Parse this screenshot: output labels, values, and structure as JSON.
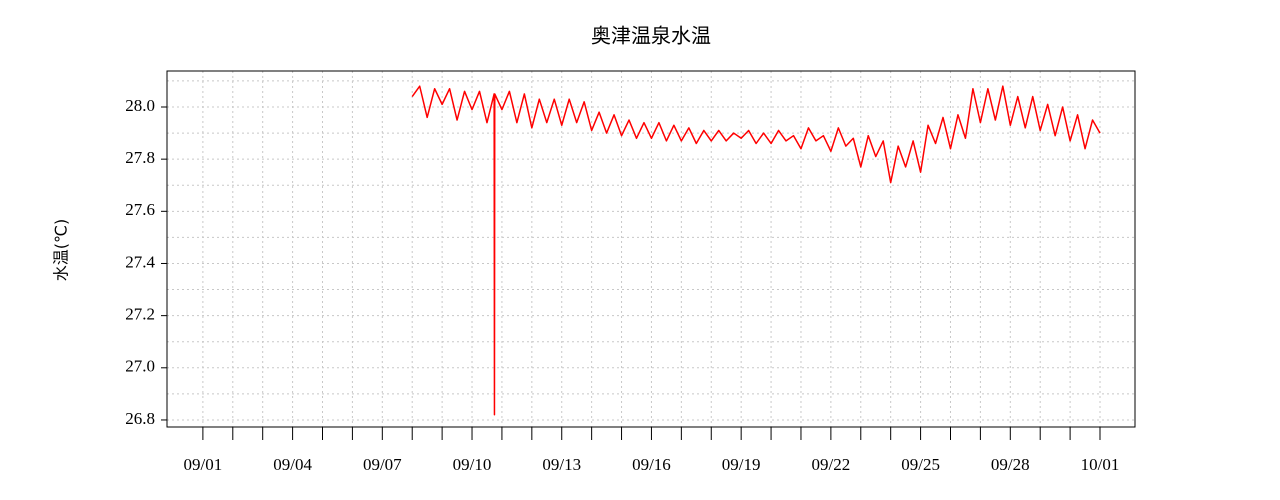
{
  "chart_data": {
    "type": "line",
    "title": "奥津温泉水温",
    "ylabel": "水温(℃)",
    "color": "#ff0000",
    "grid": true,
    "xlim": [
      -1.2,
      31.17
    ],
    "ylim": [
      26.773,
      28.138
    ],
    "xticks": [
      {
        "value": 0,
        "label": "09/01"
      },
      {
        "value": 3,
        "label": "09/04"
      },
      {
        "value": 6,
        "label": "09/07"
      },
      {
        "value": 9,
        "label": "09/10"
      },
      {
        "value": 12,
        "label": "09/13"
      },
      {
        "value": 15,
        "label": "09/16"
      },
      {
        "value": 18,
        "label": "09/19"
      },
      {
        "value": 21,
        "label": "09/22"
      },
      {
        "value": 24,
        "label": "09/25"
      },
      {
        "value": 27,
        "label": "09/28"
      },
      {
        "value": 30,
        "label": "10/01"
      }
    ],
    "xminorticks": [
      1,
      2,
      4,
      5,
      7,
      8,
      10,
      11,
      13,
      14,
      16,
      17,
      19,
      20,
      22,
      23,
      25,
      26,
      28,
      29
    ],
    "yticks": [
      26.8,
      {
        "value": 27,
        "label": "27.0"
      },
      27.2,
      27.4,
      27.6,
      27.8,
      {
        "value": 28,
        "label": "28.0"
      }
    ],
    "yminorticks": [
      26.9,
      27.1,
      27.3,
      27.5,
      27.7,
      27.9,
      28.1
    ],
    "x": [
      7.0,
      7.25,
      7.5,
      7.75,
      8.0,
      8.25,
      8.5,
      8.75,
      9.0,
      9.25,
      9.5,
      9.74,
      9.75,
      9.76,
      10.0,
      10.25,
      10.5,
      10.75,
      11.0,
      11.25,
      11.5,
      11.75,
      12.0,
      12.25,
      12.5,
      12.75,
      13.0,
      13.25,
      13.5,
      13.75,
      14.0,
      14.25,
      14.5,
      14.75,
      15.0,
      15.25,
      15.5,
      15.75,
      16.0,
      16.25,
      16.5,
      16.75,
      17.0,
      17.25,
      17.5,
      17.75,
      18.0,
      18.25,
      18.5,
      18.75,
      19.0,
      19.25,
      19.5,
      19.75,
      20.0,
      20.25,
      20.5,
      20.75,
      21.0,
      21.25,
      21.5,
      21.75,
      22.0,
      22.25,
      22.5,
      22.75,
      23.0,
      23.25,
      23.5,
      23.75,
      24.0,
      24.25,
      24.5,
      24.75,
      25.0,
      25.25,
      25.5,
      25.75,
      26.0,
      26.25,
      26.5,
      26.75,
      27.0,
      27.25,
      27.5,
      27.75,
      28.0,
      28.25,
      28.5,
      28.75,
      29.0,
      29.25,
      29.5,
      29.75,
      30.0
    ],
    "values": [
      28.04,
      28.08,
      27.96,
      28.07,
      28.01,
      28.07,
      27.95,
      28.06,
      27.99,
      28.06,
      27.94,
      28.05,
      26.82,
      28.05,
      27.99,
      28.06,
      27.94,
      28.05,
      27.92,
      28.03,
      27.94,
      28.03,
      27.93,
      28.03,
      27.94,
      28.02,
      27.91,
      27.98,
      27.9,
      27.97,
      27.89,
      27.95,
      27.88,
      27.94,
      27.88,
      27.94,
      27.87,
      27.93,
      27.87,
      27.92,
      27.86,
      27.91,
      27.87,
      27.91,
      27.87,
      27.9,
      27.88,
      27.91,
      27.86,
      27.9,
      27.86,
      27.91,
      27.87,
      27.89,
      27.84,
      27.92,
      27.87,
      27.89,
      27.83,
      27.92,
      27.85,
      27.88,
      27.77,
      27.89,
      27.81,
      27.87,
      27.71,
      27.85,
      27.77,
      27.87,
      27.75,
      27.93,
      27.86,
      27.96,
      27.84,
      27.97,
      27.88,
      28.07,
      27.94,
      28.07,
      27.95,
      28.08,
      27.93,
      28.04,
      27.92,
      28.04,
      27.91,
      28.01,
      27.89,
      28.0,
      27.87,
      27.97,
      27.84,
      27.95,
      27.9
    ]
  }
}
